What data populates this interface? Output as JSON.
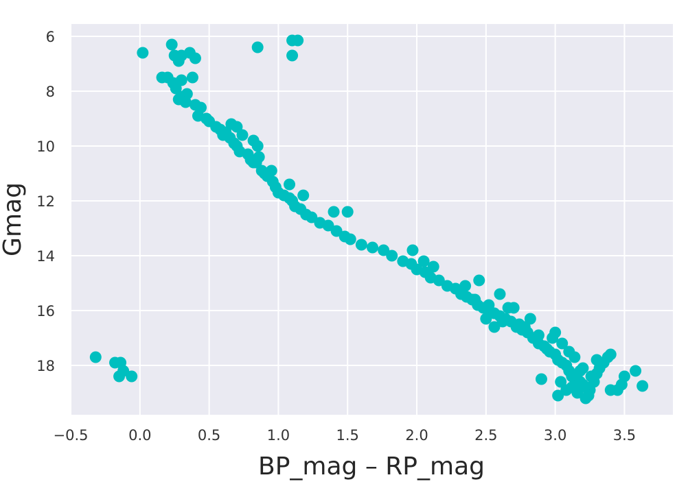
{
  "chart_data": {
    "type": "scatter",
    "title": "",
    "xlabel": "BP_mag – RP_mag",
    "ylabel": "Gmag",
    "xlim": [
      -0.5,
      3.85
    ],
    "ylim": [
      19.8,
      5.55
    ],
    "y_inverted": true,
    "grid": true,
    "background": "#eaeaf2",
    "grid_color": "#ffffff",
    "point_color": "#00bfbf",
    "xticks": [
      -0.5,
      0.0,
      0.5,
      1.0,
      1.5,
      2.0,
      2.5,
      3.0,
      3.5
    ],
    "xtick_labels": [
      "−0.5",
      "0.0",
      "0.5",
      "1.0",
      "1.5",
      "2.0",
      "2.5",
      "3.0",
      "3.5"
    ],
    "yticks": [
      6,
      8,
      10,
      12,
      14,
      16,
      18
    ],
    "ytick_labels": [
      "6",
      "8",
      "10",
      "12",
      "14",
      "16",
      "18"
    ],
    "series": [
      {
        "x": [
          0.02,
          0.23,
          0.25,
          0.3,
          0.28,
          0.36,
          0.4,
          0.85,
          1.1,
          1.14,
          1.1,
          0.16,
          0.2,
          0.24,
          0.3,
          0.38,
          0.26,
          0.3,
          0.34,
          0.28,
          0.33,
          0.4,
          0.44,
          0.42,
          0.48,
          0.5,
          0.55,
          0.58,
          0.6,
          0.62,
          0.65,
          0.68,
          0.7,
          0.72,
          0.66,
          0.7,
          0.74,
          0.78,
          0.8,
          0.84,
          0.86,
          0.82,
          0.88,
          0.92,
          0.96,
          0.9,
          0.98,
          1.0,
          1.04,
          1.08,
          1.1,
          1.12,
          1.16,
          1.2,
          1.24,
          1.3,
          1.36,
          1.42,
          1.48,
          1.52,
          1.6,
          1.68,
          1.76,
          1.82,
          1.9,
          1.96,
          2.0,
          2.06,
          2.1,
          2.16,
          2.22,
          2.28,
          2.32,
          2.36,
          2.4,
          2.44,
          2.48,
          2.52,
          2.56,
          2.6,
          2.64,
          2.68,
          2.72,
          2.76,
          2.8,
          2.84,
          2.88,
          2.92,
          2.96,
          3.0,
          3.02,
          3.05,
          3.08,
          3.1,
          3.12,
          3.15,
          3.18,
          3.2,
          3.22,
          3.25,
          3.28,
          3.3,
          3.32,
          3.35,
          3.38,
          3.4,
          3.45,
          3.5,
          3.58,
          3.63,
          0.82,
          0.85,
          0.95,
          1.08,
          1.18,
          1.4,
          1.5,
          1.97,
          2.05,
          2.12,
          2.35,
          2.45,
          2.6,
          2.7,
          2.74,
          2.82,
          2.98,
          3.0,
          3.05,
          3.1,
          3.14,
          3.2,
          3.26,
          3.3,
          3.4,
          3.48,
          2.5,
          2.56,
          2.66,
          2.78,
          2.88,
          2.94,
          3.04,
          3.08,
          3.16,
          3.24,
          2.42,
          2.52,
          2.62,
          2.9,
          3.02,
          3.12,
          3.22,
          3.18,
          -0.32,
          -0.18,
          -0.14,
          -0.12,
          -0.15,
          -0.06
        ],
        "y": [
          6.6,
          6.3,
          6.7,
          6.7,
          6.9,
          6.6,
          6.8,
          6.4,
          6.15,
          6.15,
          6.7,
          7.5,
          7.5,
          7.7,
          7.6,
          7.5,
          7.9,
          8.2,
          8.1,
          8.3,
          8.4,
          8.5,
          8.6,
          8.9,
          9.0,
          9.1,
          9.3,
          9.4,
          9.6,
          9.5,
          9.7,
          9.9,
          10.0,
          10.2,
          9.2,
          9.3,
          9.6,
          10.3,
          10.5,
          10.6,
          10.4,
          9.8,
          10.9,
          11.1,
          11.3,
          11.0,
          11.5,
          11.7,
          11.8,
          11.9,
          12.0,
          12.2,
          12.3,
          12.5,
          12.6,
          12.8,
          12.9,
          13.1,
          13.3,
          13.4,
          13.6,
          13.7,
          13.8,
          14.0,
          14.2,
          14.3,
          14.5,
          14.6,
          14.8,
          14.9,
          15.1,
          15.2,
          15.4,
          15.5,
          15.6,
          15.8,
          15.9,
          16.0,
          16.1,
          16.2,
          16.3,
          16.4,
          16.6,
          16.7,
          16.8,
          17.0,
          17.2,
          17.3,
          17.5,
          17.6,
          17.8,
          17.9,
          18.0,
          18.2,
          18.4,
          18.5,
          18.6,
          18.7,
          18.8,
          18.9,
          18.6,
          18.3,
          18.1,
          17.9,
          17.7,
          17.6,
          18.9,
          18.4,
          18.2,
          18.75,
          10.6,
          10.0,
          10.9,
          11.4,
          11.8,
          12.4,
          12.4,
          13.8,
          14.2,
          14.4,
          15.1,
          14.9,
          15.4,
          15.9,
          16.5,
          16.3,
          17.0,
          16.8,
          17.2,
          17.5,
          17.7,
          18.1,
          18.4,
          17.8,
          18.9,
          18.7,
          16.3,
          16.6,
          15.9,
          16.6,
          16.9,
          17.4,
          18.6,
          18.9,
          19.0,
          19.1,
          15.6,
          15.8,
          16.4,
          18.5,
          19.1,
          18.8,
          19.2,
          18.2,
          17.7,
          17.9,
          17.9,
          18.2,
          18.4,
          18.4
        ]
      }
    ]
  }
}
